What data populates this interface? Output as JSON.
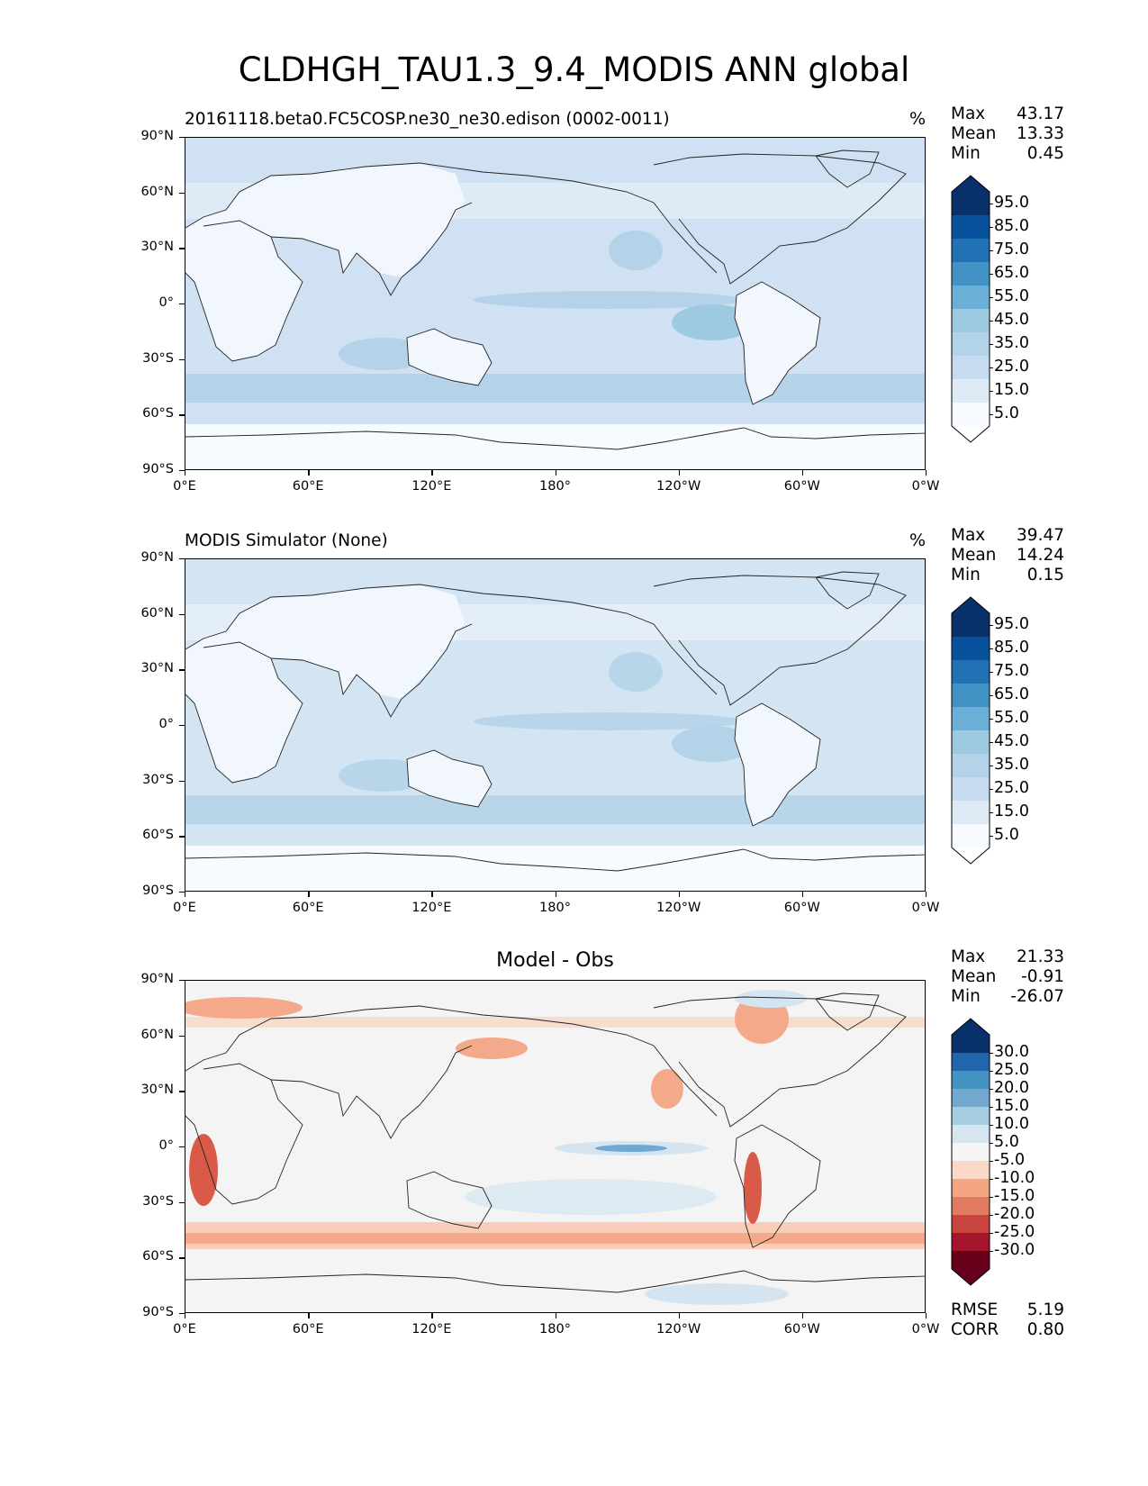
{
  "figure": {
    "title": "CLDHGH_TAU1.3_9.4_MODIS ANN global"
  },
  "axes": {
    "lat_ticks": [
      "90°N",
      "60°N",
      "30°N",
      "0°",
      "30°S",
      "60°S",
      "90°S"
    ],
    "lon_ticks": [
      "0°E",
      "60°E",
      "120°E",
      "180°",
      "120°W",
      "60°W",
      "0°W"
    ]
  },
  "panels": [
    {
      "id": "test",
      "title": "20161118.beta0.FC5COSP.ne30_ne30.edison (0002-0011)",
      "title_align": "left",
      "units": "%",
      "stats": [
        {
          "label": "Max",
          "value": "43.17"
        },
        {
          "label": "Mean",
          "value": "13.33"
        },
        {
          "label": "Min",
          "value": "0.45"
        }
      ],
      "colorbar": {
        "labels": [
          "95.0",
          "85.0",
          "75.0",
          "65.0",
          "55.0",
          "45.0",
          "35.0",
          "25.0",
          "15.0",
          "5.0"
        ],
        "colors": [
          "#08306b",
          "#08519c",
          "#2171b5",
          "#4292c6",
          "#6baed6",
          "#9ecae1",
          "#b4d3e9",
          "#c6dbef",
          "#deebf7",
          "#f7fbff"
        ],
        "extend_top": "#08306b",
        "extend_bottom": "#ffffff"
      },
      "palette": {
        "ocean": "#cfe1f2",
        "ocean_light": "#deebf7",
        "band": "#b4d3e9",
        "land": "#f2f7fd",
        "polar": "#f7fbff"
      }
    },
    {
      "id": "ref",
      "title": "MODIS Simulator (None)",
      "title_align": "left",
      "units": "%",
      "stats": [
        {
          "label": "Max",
          "value": "39.47"
        },
        {
          "label": "Mean",
          "value": "14.24"
        },
        {
          "label": "Min",
          "value": "0.15"
        }
      ],
      "colorbar": {
        "labels": [
          "95.0",
          "85.0",
          "75.0",
          "65.0",
          "55.0",
          "45.0",
          "35.0",
          "25.0",
          "15.0",
          "5.0"
        ],
        "colors": [
          "#08306b",
          "#08519c",
          "#2171b5",
          "#4292c6",
          "#6baed6",
          "#9ecae1",
          "#b4d3e9",
          "#c6dbef",
          "#deebf7",
          "#f7fbff"
        ],
        "extend_top": "#08306b",
        "extend_bottom": "#ffffff"
      },
      "palette": {
        "ocean": "#d3e4f3",
        "ocean_light": "#e4eef9",
        "band": "#b9d5ea",
        "land": "#f2f7fd",
        "polar": "#f7fbff"
      }
    },
    {
      "id": "diff",
      "title": "Model - Obs",
      "title_align": "center",
      "units": "",
      "stats": [
        {
          "label": "Max",
          "value": "21.33"
        },
        {
          "label": "Mean",
          "value": "-0.91"
        },
        {
          "label": "Min",
          "value": "-26.07"
        }
      ],
      "extra_stats": [
        {
          "label": "RMSE",
          "value": "5.19"
        },
        {
          "label": "CORR",
          "value": "0.80"
        }
      ],
      "colorbar": {
        "labels": [
          "30.0",
          "25.0",
          "20.0",
          "15.0",
          "10.0",
          "5.0",
          "-5.0",
          "-10.0",
          "-15.0",
          "-20.0",
          "-25.0",
          "-30.0"
        ],
        "colors": [
          "#08306b",
          "#2166ac",
          "#4393c3",
          "#74a9cf",
          "#a6cde2",
          "#d6e6f0",
          "#f5f5f5",
          "#fbd8c8",
          "#f4a582",
          "#e07b61",
          "#c8453f",
          "#a5152b",
          "#670018"
        ],
        "extend_top": "#08306b",
        "extend_bottom": "#67001f"
      },
      "palette": {
        "ocean": "#f4f4f4",
        "ocean_light": "#f7f7f7",
        "band": "#f9cdb8",
        "land": "#f4f4f4",
        "polar": "#f4f4f4",
        "blue": "#d4e5f1",
        "blue_dark": "#6fa8d2",
        "red": "#f3a98a",
        "red_dark": "#d95a48"
      }
    }
  ]
}
